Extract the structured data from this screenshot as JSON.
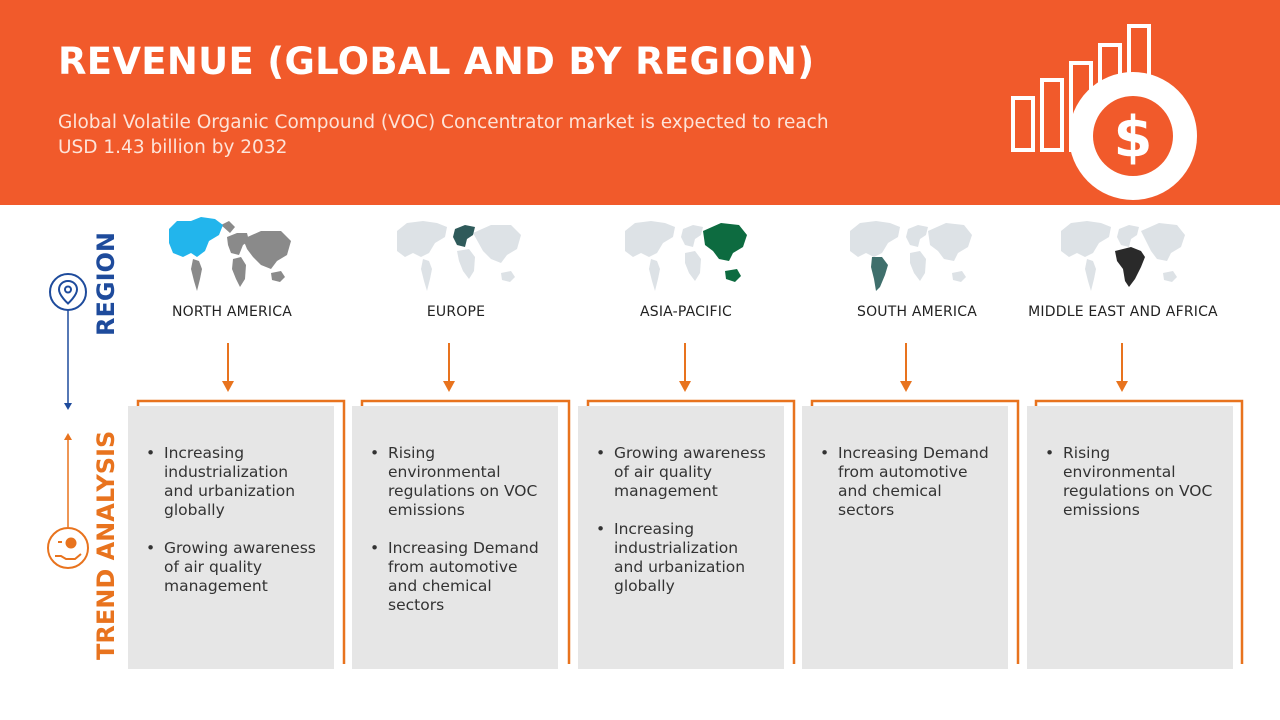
{
  "header": {
    "title": "REVENUE (GLOBAL AND BY REGION)",
    "subtitle": "Global Volatile Organic Compound (VOC) Concentrator market is expected to reach USD 1.43 billion by 2032"
  },
  "sidebar": {
    "region_label": "REGION",
    "trend_label": "TREND ANALYSIS",
    "region_icon": "location-pin-icon",
    "trend_icon": "hand-money-icon"
  },
  "colors": {
    "banner": "#f15a2b",
    "region_blue": "#1e4b9c",
    "trend_orange": "#e8731e",
    "card_bg": "#e6e6e6",
    "map_gray": "#dde2e6"
  },
  "regions": [
    {
      "name": "NORTH AMERICA",
      "highlight_color": "#22b5ec",
      "trends": [
        "Increasing industrialization and urbanization globally",
        "Growing awareness of air quality management"
      ]
    },
    {
      "name": "EUROPE",
      "highlight_color": "#2f5a5a",
      "trends": [
        "Rising environmental regulations on VOC emissions",
        "Increasing Demand from automotive and chemical sectors"
      ]
    },
    {
      "name": "ASIA-PACIFIC",
      "highlight_color": "#0d6b40",
      "trends": [
        "Growing awareness of air quality management",
        "Increasing industrialization and urbanization globally"
      ]
    },
    {
      "name": "SOUTH AMERICA",
      "highlight_color": "#3f6f6c",
      "trends": [
        "Increasing Demand from automotive and chemical sectors"
      ]
    },
    {
      "name": "MIDDLE EAST AND AFRICA",
      "highlight_color": "#2a2a2a",
      "trends": [
        "Rising environmental regulations on VOC emissions"
      ]
    }
  ]
}
